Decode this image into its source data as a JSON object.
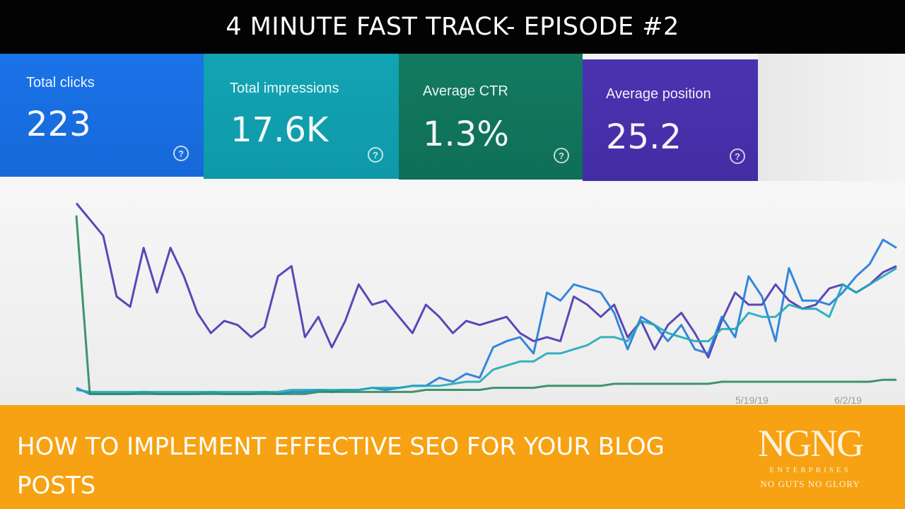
{
  "header": {
    "title": "4 MINUTE FAST TRACK- EPISODE #2"
  },
  "metrics": [
    {
      "label": "Total clicks",
      "value": "223",
      "color": "#1a73e8"
    },
    {
      "label": "Total impressions",
      "value": "17.6K",
      "color": "#12a4b4"
    },
    {
      "label": "Average CTR",
      "value": "1.3%",
      "color": "#137a60"
    },
    {
      "label": "Average position",
      "value": "25.2",
      "color": "#4b33b0"
    }
  ],
  "help_glyph": "?",
  "footer": {
    "title": "HOW TO IMPLEMENT EFFECTIVE SEO FOR YOUR BLOG POSTS",
    "logo_mark": "NGNG",
    "logo_line1": "ENTERPRISES",
    "logo_line2": "NO GUTS NO GLORY"
  },
  "chart_data": {
    "type": "line",
    "x_tick_labels": [
      "5/19/19",
      "6/2/19"
    ],
    "series": [
      {
        "color": "#4b33b0",
        "values": [
          96,
          88,
          80,
          50,
          45,
          74,
          52,
          74,
          60,
          42,
          32,
          38,
          36,
          30,
          35,
          60,
          65,
          30,
          40,
          25,
          38,
          56,
          46,
          48,
          40,
          32,
          46,
          40,
          32,
          38,
          36,
          38,
          40,
          32,
          28,
          30,
          28,
          50,
          46,
          40,
          46,
          30,
          38,
          24,
          36,
          42,
          32,
          20,
          38,
          52,
          46,
          46,
          56,
          48,
          44,
          46,
          54,
          56,
          52,
          56,
          62,
          65
        ]
      },
      {
        "color": "#1e7ad8",
        "values": [
          5,
          2,
          2,
          2,
          2,
          3,
          2,
          2,
          2,
          2,
          3,
          2,
          2,
          2,
          3,
          2,
          3,
          3,
          4,
          3,
          4,
          4,
          5,
          4,
          5,
          6,
          6,
          10,
          8,
          12,
          10,
          25,
          28,
          30,
          22,
          52,
          48,
          56,
          54,
          52,
          42,
          24,
          40,
          36,
          28,
          36,
          24,
          22,
          40,
          30,
          60,
          50,
          28,
          64,
          48,
          48,
          46,
          52,
          60,
          66,
          78,
          74
        ]
      },
      {
        "color": "#20a8b8",
        "values": [
          4,
          3,
          3,
          3,
          3,
          3,
          3,
          3,
          3,
          3,
          3,
          3,
          3,
          3,
          3,
          3,
          4,
          4,
          4,
          4,
          4,
          4,
          5,
          5,
          5,
          6,
          6,
          6,
          7,
          8,
          8,
          14,
          16,
          18,
          18,
          22,
          22,
          24,
          26,
          30,
          30,
          28,
          38,
          36,
          32,
          30,
          28,
          28,
          34,
          34,
          42,
          40,
          40,
          46,
          44,
          44,
          40,
          56,
          52,
          56,
          60,
          64
        ]
      },
      {
        "color": "#2a8a5c",
        "values": [
          90,
          2,
          2,
          2,
          2,
          2,
          2,
          2,
          2,
          2,
          2,
          2,
          2,
          2,
          2,
          2,
          2,
          2,
          3,
          3,
          3,
          3,
          3,
          3,
          3,
          3,
          4,
          4,
          4,
          4,
          4,
          5,
          5,
          5,
          5,
          6,
          6,
          6,
          6,
          6,
          7,
          7,
          7,
          7,
          7,
          7,
          7,
          7,
          8,
          8,
          8,
          8,
          8,
          8,
          8,
          8,
          8,
          8,
          8,
          8,
          9,
          9
        ]
      }
    ]
  }
}
